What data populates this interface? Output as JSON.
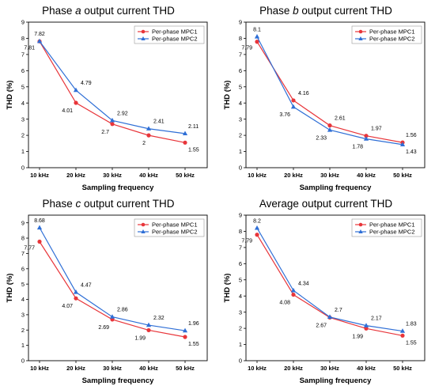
{
  "colors": {
    "mpc1": "#e8353a",
    "mpc2": "#2f6fd6"
  },
  "chart_data": [
    {
      "type": "line",
      "title_parts": [
        "Phase ",
        "a",
        " output current THD"
      ],
      "xlabel": "Sampling frequency",
      "ylabel": "THD (%)",
      "categories": [
        "10 kHz",
        "20 kHz",
        "30 kHz",
        "40 kHz",
        "50 kHz"
      ],
      "ylim": [
        0,
        9
      ],
      "yticks": [
        0,
        1,
        2,
        3,
        4,
        5,
        6,
        7,
        8,
        9
      ],
      "grid": false,
      "legend": "top-right",
      "series": [
        {
          "name": "Per-phase MPC1",
          "values": [
            7.81,
            4.01,
            2.7,
            2,
            1.55
          ],
          "labels": [
            "7.81",
            "4.01",
            "2.7",
            "2",
            "1.55"
          ]
        },
        {
          "name": "Per-phase MPC2",
          "values": [
            7.82,
            4.79,
            2.92,
            2.41,
            2.11
          ],
          "labels": [
            "7.82",
            "4.79",
            "2.92",
            "2.41",
            "2.11"
          ]
        }
      ]
    },
    {
      "type": "line",
      "title_parts": [
        "Phase ",
        "b",
        " output current THD"
      ],
      "xlabel": "Sampling frequency",
      "ylabel": "THD (%)",
      "categories": [
        "10 kHz",
        "20 kHz",
        "30 kHz",
        "40 kHz",
        "50 kHz"
      ],
      "ylim": [
        0,
        9
      ],
      "yticks": [
        0,
        1,
        2,
        3,
        4,
        5,
        6,
        7,
        8,
        9
      ],
      "grid": false,
      "legend": "top-right",
      "series": [
        {
          "name": "Per-phase MPC1",
          "values": [
            7.79,
            4.16,
            2.61,
            1.97,
            1.56
          ],
          "labels": [
            "7.79",
            "4.16",
            "2.61",
            "1.97",
            "1.56"
          ]
        },
        {
          "name": "Per-phase MPC2",
          "values": [
            8.1,
            3.76,
            2.33,
            1.78,
            1.43
          ],
          "labels": [
            "8.1",
            "3.76",
            "2.33",
            "1.78",
            "1.43"
          ]
        }
      ]
    },
    {
      "type": "line",
      "title_parts": [
        "Phase ",
        "c",
        " output current THD"
      ],
      "xlabel": "Sampling frequency",
      "ylabel": "THD (%)",
      "categories": [
        "10 kHz",
        "20 kHz",
        "30 kHz",
        "40 kHz",
        "50 kHz"
      ],
      "ylim": [
        0,
        9.5
      ],
      "yticks": [
        0,
        1,
        2,
        3,
        4,
        5,
        6,
        7,
        8,
        9
      ],
      "grid": false,
      "legend": "top-right",
      "series": [
        {
          "name": "Per-phase MPC1",
          "values": [
            7.77,
            4.07,
            2.69,
            1.99,
            1.55
          ],
          "labels": [
            "7.77",
            "4.07",
            "2.69",
            "1.99",
            "1.55"
          ]
        },
        {
          "name": "Per-phase MPC2",
          "values": [
            8.68,
            4.47,
            2.86,
            2.32,
            1.96
          ],
          "labels": [
            "8.68",
            "4.47",
            "2.86",
            "2.32",
            "1.96"
          ]
        }
      ]
    },
    {
      "type": "line",
      "title_parts": [
        "Average output current THD"
      ],
      "xlabel": "Sampling frequency",
      "ylabel": "THD (%)",
      "categories": [
        "10 kHz",
        "20 kHz",
        "30 kHz",
        "40 kHz",
        "50 kHz"
      ],
      "ylim": [
        0,
        9
      ],
      "yticks": [
        0,
        1,
        2,
        3,
        4,
        5,
        6,
        7,
        8,
        9
      ],
      "grid": false,
      "legend": "top-right",
      "series": [
        {
          "name": "Per-phase MPC1",
          "values": [
            7.79,
            4.08,
            2.67,
            1.99,
            1.55
          ],
          "labels": [
            "7.79",
            "4.08",
            "2.67",
            "1.99",
            "1.55"
          ]
        },
        {
          "name": "Per-phase MPC2",
          "values": [
            8.2,
            4.34,
            2.7,
            2.17,
            1.83
          ],
          "labels": [
            "8.2",
            "4.34",
            "2.7",
            "2.17",
            "1.83"
          ]
        }
      ]
    }
  ]
}
